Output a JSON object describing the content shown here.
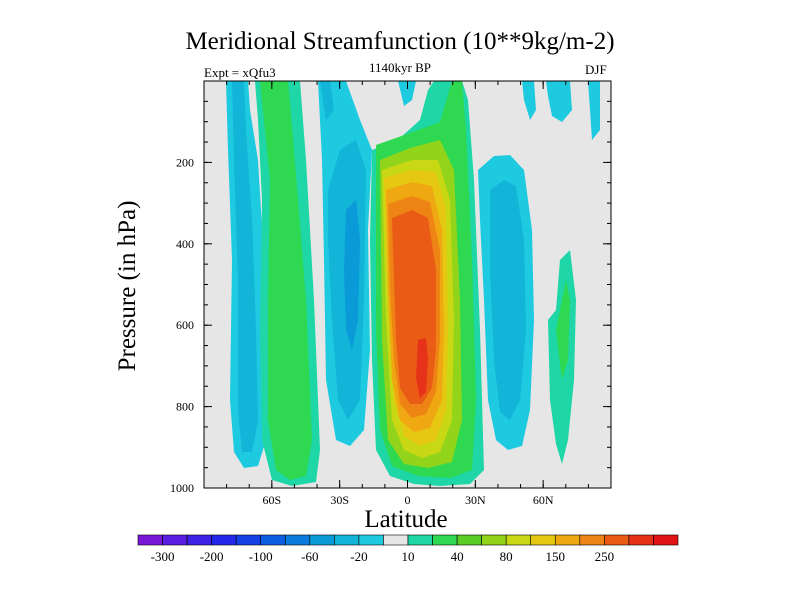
{
  "chart_data": {
    "type": "contour",
    "title": "Meridional Streamfunction (10**9kg/m-2)",
    "left_label": "Expt = xQfu3",
    "center_label": "1140kyr BP",
    "right_label": "DJF",
    "xlabel": "Latitude",
    "ylabel": "Pressure (in hPa)",
    "xlim": [
      -90,
      90
    ],
    "ylim": [
      1000,
      0
    ],
    "x_ticks": [
      {
        "value": -60,
        "label": "60S"
      },
      {
        "value": -30,
        "label": "30S"
      },
      {
        "value": 0,
        "label": "0"
      },
      {
        "value": 30,
        "label": "30N"
      },
      {
        "value": 60,
        "label": "60N"
      }
    ],
    "y_ticks": [
      {
        "value": 200,
        "label": "200"
      },
      {
        "value": 400,
        "label": "400"
      },
      {
        "value": 600,
        "label": "600"
      },
      {
        "value": 800,
        "label": "800"
      },
      {
        "value": 1000,
        "label": "1000"
      }
    ],
    "colorbar": {
      "colors": [
        "#7a16d6",
        "#5a1ee0",
        "#3d22e6",
        "#2328e8",
        "#1440e4",
        "#0a5ee0",
        "#0a7cde",
        "#0b9ad8",
        "#12b4d8",
        "#1ecae0",
        "#e6e6e6",
        "#1ed6a6",
        "#2ed850",
        "#5acc24",
        "#92d41a",
        "#c8d814",
        "#e6c812",
        "#f0a812",
        "#ee8414",
        "#ea5c16",
        "#e63218",
        "#e01414"
      ],
      "tick_labels": [
        "-300",
        "-200",
        "-100",
        "-60",
        "-20",
        "10",
        "40",
        "80",
        "150",
        "250"
      ],
      "tick_boundaries": [
        1,
        3,
        5,
        7,
        9,
        11,
        13,
        15,
        17,
        19
      ]
    },
    "features": [
      {
        "name": "SH polar cell",
        "sign": "negative",
        "lat_range": [
          -80,
          -70
        ],
        "p_range": [
          0,
          1000
        ],
        "peak": -40
      },
      {
        "name": "SH Ferrel cell",
        "sign": "positive",
        "lat_range": [
          -66,
          -50
        ],
        "p_range": [
          0,
          1000
        ],
        "peak": 40
      },
      {
        "name": "SH Hadley cell",
        "sign": "negative",
        "lat_range": [
          -42,
          -14
        ],
        "p_range": [
          150,
          1000
        ],
        "peak": -60
      },
      {
        "name": "Winter Hadley cell",
        "sign": "positive",
        "lat_range": [
          -12,
          22
        ],
        "p_range": [
          0,
          1000
        ],
        "peak": 250
      },
      {
        "name": "NH Ferrel cell",
        "sign": "negative",
        "lat_range": [
          28,
          50
        ],
        "p_range": [
          200,
          950
        ],
        "peak": -60
      },
      {
        "name": "NH polar cell",
        "sign": "positive",
        "lat_range": [
          56,
          70
        ],
        "p_range": [
          400,
          1000
        ],
        "peak": 20
      }
    ]
  }
}
